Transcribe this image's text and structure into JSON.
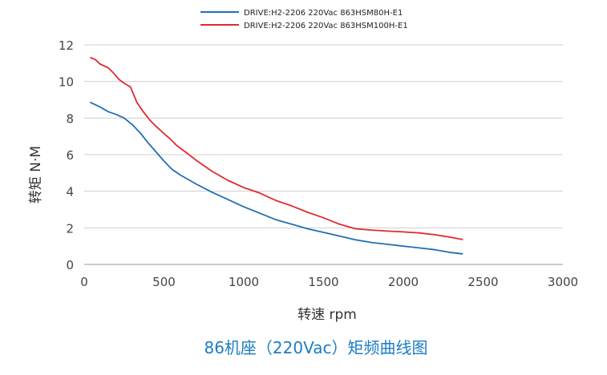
{
  "chart_data": {
    "type": "line",
    "title": "86机座（220Vac）矩频曲线图",
    "xlabel": "转速 rpm",
    "ylabel": "转矩 N·M",
    "xlim": [
      0,
      3000
    ],
    "ylim": [
      0,
      12
    ],
    "xticks": [
      0,
      500,
      1000,
      1500,
      2000,
      2500,
      3000
    ],
    "yticks": [
      0,
      2,
      4,
      6,
      8,
      10,
      12
    ],
    "grid": "horizontal",
    "legend_position": "top-center",
    "series": [
      {
        "name": "DRIVE:H2-2206 220Vac 863HSM80H-E1",
        "color": "#1f6fb5",
        "x": [
          40,
          100,
          150,
          200,
          250,
          300,
          350,
          400,
          450,
          500,
          550,
          600,
          700,
          800,
          900,
          1000,
          1100,
          1200,
          1300,
          1400,
          1500,
          1600,
          1700,
          1800,
          1900,
          2000,
          2100,
          2200,
          2300,
          2370
        ],
        "y": [
          8.85,
          8.6,
          8.35,
          8.2,
          8.0,
          7.65,
          7.2,
          6.65,
          6.15,
          5.65,
          5.2,
          4.9,
          4.4,
          3.95,
          3.55,
          3.15,
          2.8,
          2.45,
          2.2,
          1.95,
          1.75,
          1.55,
          1.35,
          1.2,
          1.1,
          1.0,
          0.9,
          0.8,
          0.65,
          0.58
        ]
      },
      {
        "name": "DRIVE:H2-2206 220Vac 863HSM100H-E1",
        "color": "#e02a31",
        "x": [
          40,
          70,
          100,
          150,
          180,
          220,
          250,
          290,
          330,
          370,
          410,
          450,
          500,
          540,
          580,
          650,
          700,
          800,
          900,
          1000,
          1100,
          1200,
          1300,
          1400,
          1500,
          1600,
          1700,
          1800,
          1900,
          2000,
          2100,
          2200,
          2300,
          2370
        ],
        "y": [
          11.3,
          11.2,
          10.95,
          10.75,
          10.5,
          10.1,
          9.9,
          9.7,
          8.85,
          8.35,
          7.9,
          7.55,
          7.15,
          6.85,
          6.5,
          6.05,
          5.7,
          5.1,
          4.6,
          4.2,
          3.9,
          3.5,
          3.2,
          2.85,
          2.55,
          2.2,
          1.95,
          1.88,
          1.82,
          1.78,
          1.72,
          1.62,
          1.48,
          1.36
        ]
      }
    ]
  }
}
